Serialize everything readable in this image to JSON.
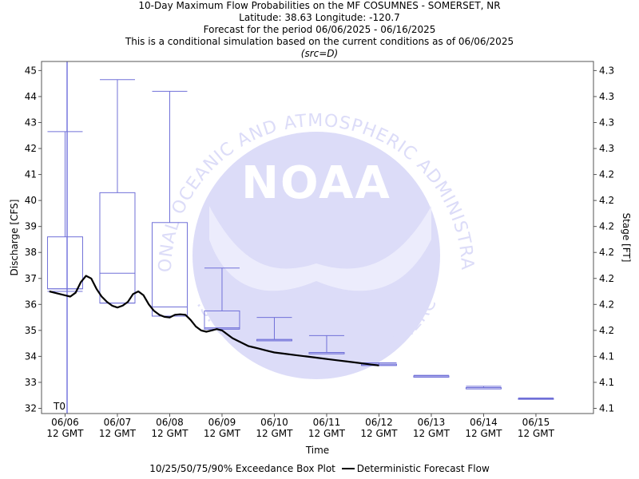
{
  "header": {
    "title": "10-Day Maximum Flow Probabilities on the MF COSUMNES - SOMERSET, NR",
    "location": "Latitude: 38.63 Longitude: -120.7",
    "period": "Forecast for the period 06/06/2025 - 06/16/2025",
    "note": "This is a conditional simulation based on the current conditions as of 06/06/2025",
    "source": "(src=D)"
  },
  "legend": {
    "box_label": "10/25/50/75/90% Exceedance Box Plot",
    "line_label": "Deterministic Forecast Flow"
  },
  "watermark": {
    "logo_text": "NOAA",
    "arc_top": "NATIONAL OCEANIC AND ATMOSPHERIC ADMINISTRATION",
    "arc_bottom": "U.S. DEPARTMENT OF COMMERCE"
  },
  "colors": {
    "box": "#7070d8",
    "forecast_line": "#000000",
    "t0_line": "#3333cc",
    "watermark": "#dcdcf8"
  },
  "chart_data": {
    "type": "box",
    "xlabel": "Time",
    "ylabel": "Discharge [CFS]",
    "y2label": "Stage [FT]",
    "ylim": [
      31.8,
      45.35
    ],
    "xlim_days": [
      -0.45,
      10.1
    ],
    "t0_label": "T0",
    "x_ticks": [
      "06/06|12 GMT",
      "06/07|12 GMT",
      "06/08|12 GMT",
      "06/09|12 GMT",
      "06/10|12 GMT",
      "06/11|12 GMT",
      "06/12|12 GMT",
      "06/13|12 GMT",
      "06/14|12 GMT",
      "06/15|12 GMT"
    ],
    "y_ticks": [
      32,
      33,
      34,
      35,
      36,
      37,
      38,
      39,
      40,
      41,
      42,
      43,
      44,
      45
    ],
    "y2_ticks": [
      "4.1",
      "4.1",
      "4.1",
      "4.2",
      "4.2",
      "4.2",
      "4.2",
      "4.2",
      "4.2",
      "4.2",
      "4.3",
      "4.3",
      "4.3",
      "4.3"
    ],
    "boxes": [
      {
        "day": 0,
        "p10": 36.5,
        "p25": 36.6,
        "p50": 36.6,
        "p75": 38.6,
        "p90": 42.65
      },
      {
        "day": 1,
        "p10": 36.05,
        "p25": 36.05,
        "p50": 37.2,
        "p75": 40.3,
        "p90": 44.65
      },
      {
        "day": 2,
        "p10": 35.55,
        "p25": 35.55,
        "p50": 35.9,
        "p75": 39.15,
        "p90": 44.2
      },
      {
        "day": 3,
        "p10": 35.05,
        "p25": 35.05,
        "p50": 35.1,
        "p75": 35.75,
        "p90": 37.4
      },
      {
        "day": 4,
        "p10": 34.6,
        "p25": 34.6,
        "p50": 34.65,
        "p75": 34.65,
        "p90": 35.5
      },
      {
        "day": 5,
        "p10": 34.1,
        "p25": 34.1,
        "p50": 34.15,
        "p75": 34.15,
        "p90": 34.8
      },
      {
        "day": 6,
        "p10": 33.65,
        "p25": 33.65,
        "p50": 33.7,
        "p75": 33.7,
        "p90": 33.75
      },
      {
        "day": 7,
        "p10": 33.2,
        "p25": 33.2,
        "p50": 33.25,
        "p75": 33.25,
        "p90": 33.27
      },
      {
        "day": 8,
        "p10": 32.75,
        "p25": 32.75,
        "p50": 32.8,
        "p75": 32.8,
        "p90": 32.85
      },
      {
        "day": 9,
        "p10": 32.35,
        "p25": 32.35,
        "p50": 32.38,
        "p75": 32.38,
        "p90": 32.4
      }
    ],
    "forecast_flow": {
      "x_days": [
        -0.3,
        -0.2,
        -0.1,
        0.0,
        0.1,
        0.2,
        0.3,
        0.4,
        0.5,
        0.6,
        0.7,
        0.8,
        0.9,
        1.0,
        1.1,
        1.2,
        1.3,
        1.4,
        1.5,
        1.6,
        1.7,
        1.8,
        1.9,
        2.0,
        2.1,
        2.2,
        2.3,
        2.4,
        2.5,
        2.6,
        2.7,
        2.8,
        2.9,
        3.0,
        3.1,
        3.2,
        3.3,
        3.4,
        3.5,
        3.6,
        3.7,
        3.8,
        3.9,
        4.0,
        4.2,
        4.4,
        4.6,
        4.8,
        5.0,
        5.2,
        5.4,
        5.6,
        5.8,
        6.0
      ],
      "values": [
        36.5,
        36.45,
        36.4,
        36.35,
        36.3,
        36.45,
        36.85,
        37.1,
        37.0,
        36.6,
        36.3,
        36.1,
        35.95,
        35.88,
        35.95,
        36.1,
        36.4,
        36.5,
        36.35,
        36.0,
        35.75,
        35.6,
        35.52,
        35.5,
        35.6,
        35.62,
        35.6,
        35.4,
        35.15,
        35.0,
        34.95,
        35.0,
        35.05,
        35.0,
        34.85,
        34.7,
        34.6,
        34.5,
        34.4,
        34.35,
        34.3,
        34.25,
        34.2,
        34.15,
        34.1,
        34.05,
        34.0,
        33.95,
        33.9,
        33.85,
        33.8,
        33.75,
        33.7,
        33.65
      ]
    }
  }
}
